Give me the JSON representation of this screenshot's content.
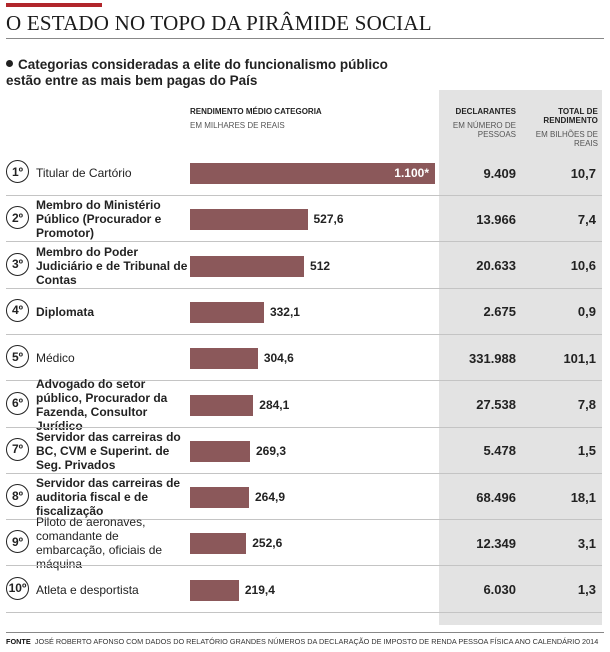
{
  "title": "O ESTADO NO TOPO DA PIRÂMIDE SOCIAL",
  "subtitle": "Categorias consideradas a elite do funcionalismo público estão entre as mais bem pagas do País",
  "columns": {
    "income_title": "RENDIMENTO MÉDIO CATEGORIA",
    "income_unit": "EM MILHARES DE REAIS",
    "declarants_title": "DECLARANTES",
    "declarants_unit": "EM NÚMERO DE PESSOAS",
    "total_title": "TOTAL DE RENDIMENTO",
    "total_unit": "EM BILHÕES DE REAIS"
  },
  "chart_data": {
    "type": "bar",
    "orientation": "horizontal",
    "categories": [
      "Titular de Cartório",
      "Membro do Ministério Público (Procurador e Promotor)",
      "Membro do Poder Judiciário e de Tribunal de Contas",
      "Diplomata",
      "Médico",
      "Advogado do setor público, Procurador da Fazenda, Consultor Jurídico",
      "Servidor das carreiras do BC, CVM e Superint. de Seg. Privados",
      "Servidor das carreiras de auditoria fiscal e de fiscalização",
      "Piloto de aeronaves, comandante de embarcação, oficiais de máquina",
      "Atleta e desportista"
    ],
    "ranks": [
      "1º",
      "2º",
      "3º",
      "4º",
      "5º",
      "6º",
      "7º",
      "8º",
      "9º",
      "10º"
    ],
    "values": [
      1100,
      527.6,
      512,
      332.1,
      304.6,
      284.1,
      269.3,
      264.9,
      252.6,
      219.4
    ],
    "value_labels": [
      "1.100*",
      "527,6",
      "512",
      "332,1",
      "304,6",
      "284,1",
      "269,3",
      "264,9",
      "252,6",
      "219,4"
    ],
    "label_bold": [
      false,
      true,
      true,
      true,
      false,
      true,
      true,
      true,
      false,
      false
    ],
    "declarants": [
      "9.409",
      "13.966",
      "20.633",
      "2.675",
      "331.988",
      "27.538",
      "5.478",
      "68.496",
      "12.349",
      "6.030"
    ],
    "total_income": [
      "10,7",
      "7,4",
      "10,6",
      "0,9",
      "101,1",
      "7,8",
      "1,5",
      "18,1",
      "3,1",
      "1,3"
    ],
    "bar_color": "#8b585a"
  },
  "footer": {
    "label": "FONTE",
    "text": "JOSÉ ROBERTO AFONSO COM DADOS DO RELATÓRIO GRANDES NÚMEROS DA DECLARAÇÃO DE IMPOSTO DE RENDA PESSOA FÍSICA ANO CALENDÁRIO 2014"
  },
  "colors": {
    "accent": "#b1262b",
    "panel": "#e3e3e3"
  }
}
